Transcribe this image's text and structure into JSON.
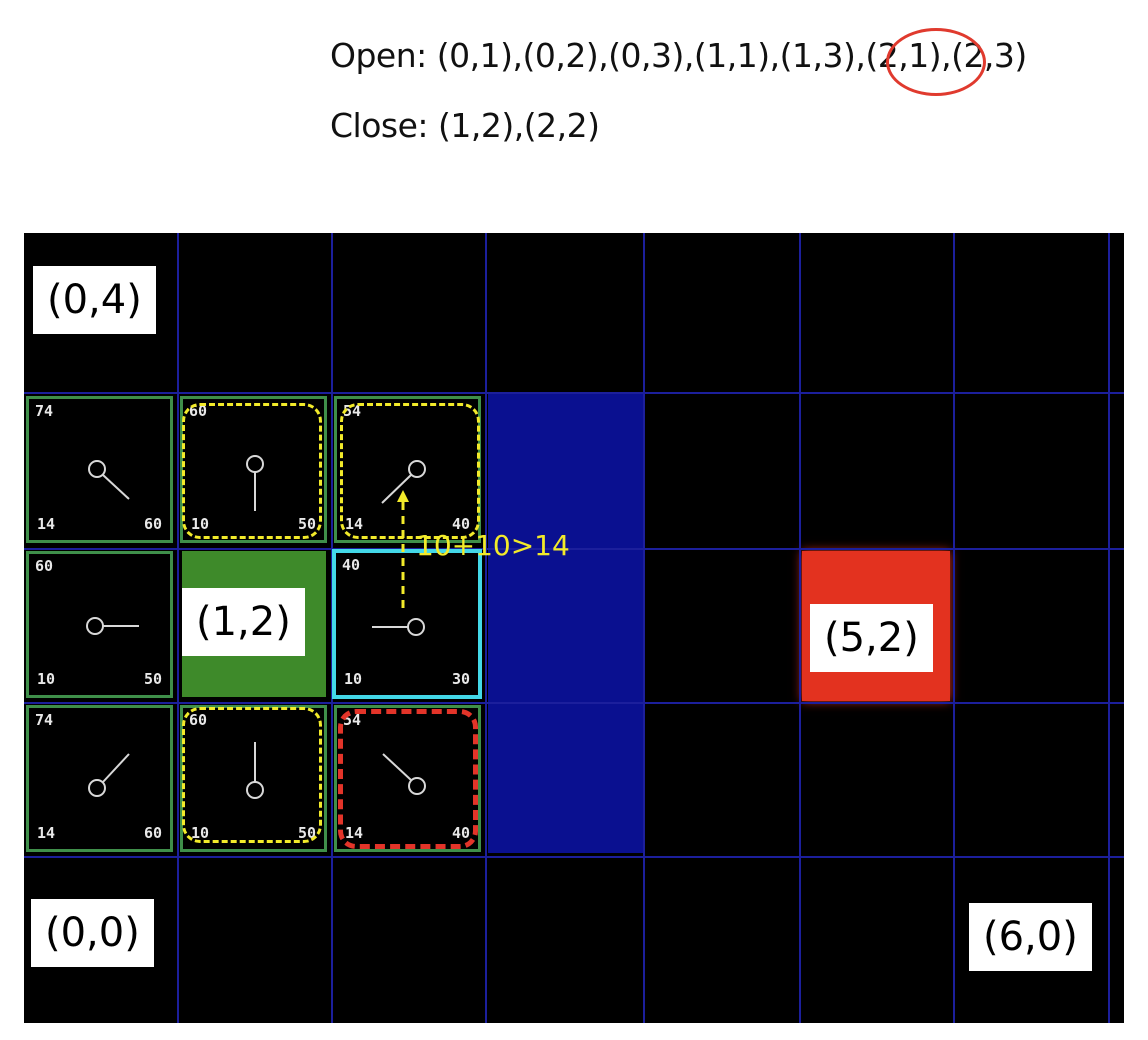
{
  "open_text": "Open: (0,1),(0,2),(0,3),(1,1),(1,3),(2,1),(2,3)",
  "close_text": "Close: (1,2),(2,2)",
  "labels": {
    "top_left": "(0,4)",
    "start": "(1,2)",
    "target": "(5,2)",
    "origin": "(0,0)",
    "bottom_right": "(6,0)"
  },
  "note": "10+10>14",
  "colors": {
    "background": "#000000",
    "grid_line": "#1c1f9c",
    "wall": "#0a1090",
    "target": "#e3321f",
    "start": "#3e8a2a",
    "open_border": "#3f8f4a",
    "closed_border": "#43d8e8",
    "highlight_dash": "#f2ea2a",
    "selected_dash": "#e33429"
  },
  "nodes": [
    {
      "id": "n-0-3",
      "type": "open",
      "f": "74",
      "g": "14",
      "h": "60",
      "dir": "down-right"
    },
    {
      "id": "n-1-3",
      "type": "open",
      "f": "60",
      "g": "10",
      "h": "50",
      "dir": "down"
    },
    {
      "id": "n-2-3",
      "type": "open",
      "f": "54",
      "g": "14",
      "h": "40",
      "dir": "down-left"
    },
    {
      "id": "n-0-2",
      "type": "open",
      "f": "60",
      "g": "10",
      "h": "50",
      "dir": "right"
    },
    {
      "id": "n-2-2",
      "type": "closed",
      "f": "40",
      "g": "10",
      "h": "30",
      "dir": "left"
    },
    {
      "id": "n-0-1",
      "type": "open",
      "f": "74",
      "g": "14",
      "h": "60",
      "dir": "up-right"
    },
    {
      "id": "n-1-1",
      "type": "open",
      "f": "60",
      "g": "10",
      "h": "50",
      "dir": "up"
    },
    {
      "id": "n-2-1",
      "type": "open",
      "f": "54",
      "g": "14",
      "h": "40",
      "dir": "up-left"
    }
  ]
}
